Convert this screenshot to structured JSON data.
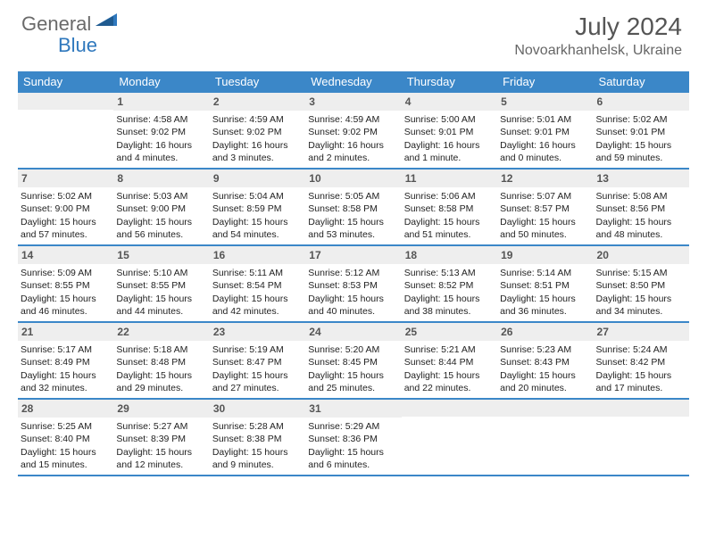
{
  "logo": {
    "text1": "General",
    "text2": "Blue"
  },
  "title": "July 2024",
  "location": "Novoarkhanhelsk, Ukraine",
  "colors": {
    "header_bg": "#3b87c8",
    "daynum_bg": "#eeeeee",
    "accent": "#2f78bd"
  },
  "day_headers": [
    "Sunday",
    "Monday",
    "Tuesday",
    "Wednesday",
    "Thursday",
    "Friday",
    "Saturday"
  ],
  "weeks": [
    [
      {
        "n": "",
        "lines": []
      },
      {
        "n": "1",
        "lines": [
          "Sunrise: 4:58 AM",
          "Sunset: 9:02 PM",
          "Daylight: 16 hours",
          "and 4 minutes."
        ]
      },
      {
        "n": "2",
        "lines": [
          "Sunrise: 4:59 AM",
          "Sunset: 9:02 PM",
          "Daylight: 16 hours",
          "and 3 minutes."
        ]
      },
      {
        "n": "3",
        "lines": [
          "Sunrise: 4:59 AM",
          "Sunset: 9:02 PM",
          "Daylight: 16 hours",
          "and 2 minutes."
        ]
      },
      {
        "n": "4",
        "lines": [
          "Sunrise: 5:00 AM",
          "Sunset: 9:01 PM",
          "Daylight: 16 hours",
          "and 1 minute."
        ]
      },
      {
        "n": "5",
        "lines": [
          "Sunrise: 5:01 AM",
          "Sunset: 9:01 PM",
          "Daylight: 16 hours",
          "and 0 minutes."
        ]
      },
      {
        "n": "6",
        "lines": [
          "Sunrise: 5:02 AM",
          "Sunset: 9:01 PM",
          "Daylight: 15 hours",
          "and 59 minutes."
        ]
      }
    ],
    [
      {
        "n": "7",
        "lines": [
          "Sunrise: 5:02 AM",
          "Sunset: 9:00 PM",
          "Daylight: 15 hours",
          "and 57 minutes."
        ]
      },
      {
        "n": "8",
        "lines": [
          "Sunrise: 5:03 AM",
          "Sunset: 9:00 PM",
          "Daylight: 15 hours",
          "and 56 minutes."
        ]
      },
      {
        "n": "9",
        "lines": [
          "Sunrise: 5:04 AM",
          "Sunset: 8:59 PM",
          "Daylight: 15 hours",
          "and 54 minutes."
        ]
      },
      {
        "n": "10",
        "lines": [
          "Sunrise: 5:05 AM",
          "Sunset: 8:58 PM",
          "Daylight: 15 hours",
          "and 53 minutes."
        ]
      },
      {
        "n": "11",
        "lines": [
          "Sunrise: 5:06 AM",
          "Sunset: 8:58 PM",
          "Daylight: 15 hours",
          "and 51 minutes."
        ]
      },
      {
        "n": "12",
        "lines": [
          "Sunrise: 5:07 AM",
          "Sunset: 8:57 PM",
          "Daylight: 15 hours",
          "and 50 minutes."
        ]
      },
      {
        "n": "13",
        "lines": [
          "Sunrise: 5:08 AM",
          "Sunset: 8:56 PM",
          "Daylight: 15 hours",
          "and 48 minutes."
        ]
      }
    ],
    [
      {
        "n": "14",
        "lines": [
          "Sunrise: 5:09 AM",
          "Sunset: 8:55 PM",
          "Daylight: 15 hours",
          "and 46 minutes."
        ]
      },
      {
        "n": "15",
        "lines": [
          "Sunrise: 5:10 AM",
          "Sunset: 8:55 PM",
          "Daylight: 15 hours",
          "and 44 minutes."
        ]
      },
      {
        "n": "16",
        "lines": [
          "Sunrise: 5:11 AM",
          "Sunset: 8:54 PM",
          "Daylight: 15 hours",
          "and 42 minutes."
        ]
      },
      {
        "n": "17",
        "lines": [
          "Sunrise: 5:12 AM",
          "Sunset: 8:53 PM",
          "Daylight: 15 hours",
          "and 40 minutes."
        ]
      },
      {
        "n": "18",
        "lines": [
          "Sunrise: 5:13 AM",
          "Sunset: 8:52 PM",
          "Daylight: 15 hours",
          "and 38 minutes."
        ]
      },
      {
        "n": "19",
        "lines": [
          "Sunrise: 5:14 AM",
          "Sunset: 8:51 PM",
          "Daylight: 15 hours",
          "and 36 minutes."
        ]
      },
      {
        "n": "20",
        "lines": [
          "Sunrise: 5:15 AM",
          "Sunset: 8:50 PM",
          "Daylight: 15 hours",
          "and 34 minutes."
        ]
      }
    ],
    [
      {
        "n": "21",
        "lines": [
          "Sunrise: 5:17 AM",
          "Sunset: 8:49 PM",
          "Daylight: 15 hours",
          "and 32 minutes."
        ]
      },
      {
        "n": "22",
        "lines": [
          "Sunrise: 5:18 AM",
          "Sunset: 8:48 PM",
          "Daylight: 15 hours",
          "and 29 minutes."
        ]
      },
      {
        "n": "23",
        "lines": [
          "Sunrise: 5:19 AM",
          "Sunset: 8:47 PM",
          "Daylight: 15 hours",
          "and 27 minutes."
        ]
      },
      {
        "n": "24",
        "lines": [
          "Sunrise: 5:20 AM",
          "Sunset: 8:45 PM",
          "Daylight: 15 hours",
          "and 25 minutes."
        ]
      },
      {
        "n": "25",
        "lines": [
          "Sunrise: 5:21 AM",
          "Sunset: 8:44 PM",
          "Daylight: 15 hours",
          "and 22 minutes."
        ]
      },
      {
        "n": "26",
        "lines": [
          "Sunrise: 5:23 AM",
          "Sunset: 8:43 PM",
          "Daylight: 15 hours",
          "and 20 minutes."
        ]
      },
      {
        "n": "27",
        "lines": [
          "Sunrise: 5:24 AM",
          "Sunset: 8:42 PM",
          "Daylight: 15 hours",
          "and 17 minutes."
        ]
      }
    ],
    [
      {
        "n": "28",
        "lines": [
          "Sunrise: 5:25 AM",
          "Sunset: 8:40 PM",
          "Daylight: 15 hours",
          "and 15 minutes."
        ]
      },
      {
        "n": "29",
        "lines": [
          "Sunrise: 5:27 AM",
          "Sunset: 8:39 PM",
          "Daylight: 15 hours",
          "and 12 minutes."
        ]
      },
      {
        "n": "30",
        "lines": [
          "Sunrise: 5:28 AM",
          "Sunset: 8:38 PM",
          "Daylight: 15 hours",
          "and 9 minutes."
        ]
      },
      {
        "n": "31",
        "lines": [
          "Sunrise: 5:29 AM",
          "Sunset: 8:36 PM",
          "Daylight: 15 hours",
          "and 6 minutes."
        ]
      },
      {
        "n": "",
        "lines": []
      },
      {
        "n": "",
        "lines": []
      },
      {
        "n": "",
        "lines": []
      }
    ]
  ]
}
